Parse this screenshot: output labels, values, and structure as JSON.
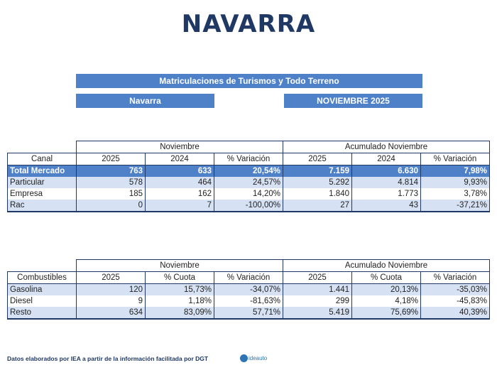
{
  "title": "NAVARRA",
  "header_bar": "Matriculaciones de Turismos y Todo Terreno",
  "region_bar": "Navarra",
  "period_bar": "NOVIEMBRE 2025",
  "table1": {
    "group_month": "Noviembre",
    "group_acc": "Acumulado Noviembre",
    "columns": [
      "Canal",
      "2025",
      "2024",
      "% Variación",
      "2025",
      "2024",
      "% Variación"
    ],
    "rows": [
      [
        "Total Mercado",
        "763",
        "633",
        "20,54%",
        "7.159",
        "6.630",
        "7,98%"
      ],
      [
        "Particular",
        "578",
        "464",
        "24,57%",
        "5.292",
        "4.814",
        "9,93%"
      ],
      [
        "Empresa",
        "185",
        "162",
        "14,20%",
        "1.840",
        "1.773",
        "3,78%"
      ],
      [
        "Rac",
        "0",
        "7",
        "-100,00%",
        "27",
        "43",
        "-37,21%"
      ]
    ]
  },
  "table2": {
    "group_month": "Noviembre",
    "group_acc": "Acumulado Noviembre",
    "columns": [
      "Combustibles",
      "2025",
      "% Cuota",
      "% Variación",
      "2025",
      "% Cuota",
      "% Variación"
    ],
    "rows": [
      [
        "Gasolina",
        "120",
        "15,73%",
        "-34,07%",
        "1.441",
        "20,13%",
        "-35,03%"
      ],
      [
        "Diesel",
        "9",
        "1,18%",
        "-81,63%",
        "299",
        "4,18%",
        "-45,83%"
      ],
      [
        "Resto",
        "634",
        "83,09%",
        "57,71%",
        "5.419",
        "75,69%",
        "40,39%"
      ]
    ]
  },
  "footer": "Datos elaborados por IEA a partir de la información facilitada por DGT",
  "logo_text": "ideauto",
  "colors": {
    "accent": "#4f81c9",
    "title": "#1f3864",
    "light_row": "#d6e2f3"
  }
}
